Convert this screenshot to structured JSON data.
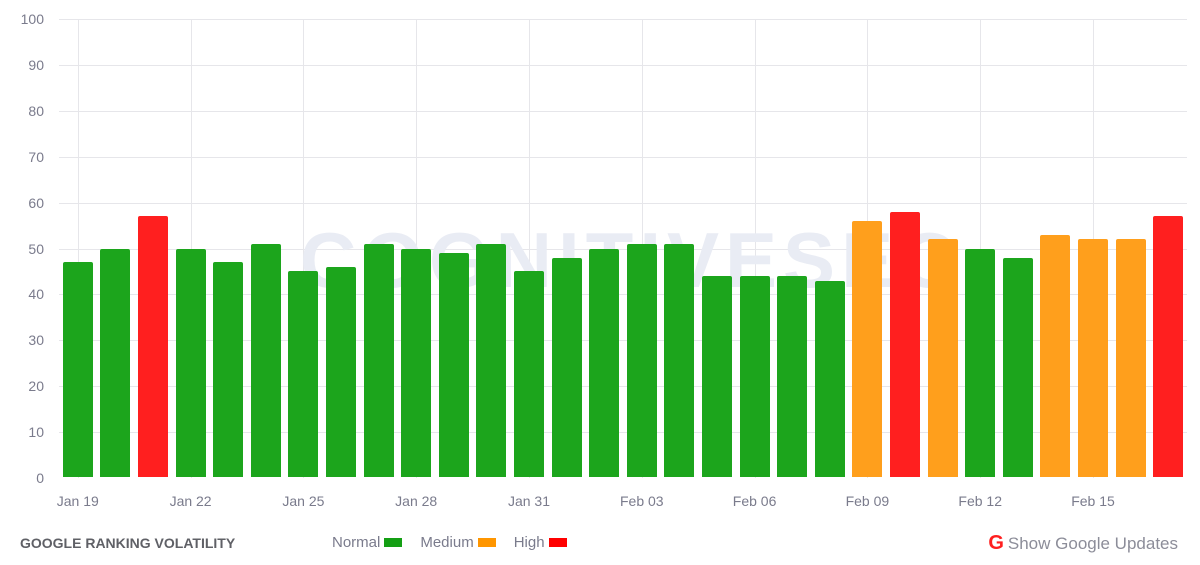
{
  "chart_data": {
    "type": "bar",
    "title": "GOOGLE RANKING VOLATILITY",
    "xlabel": "",
    "ylabel": "",
    "ylim": [
      0,
      100
    ],
    "yticks": [
      0,
      10,
      20,
      30,
      40,
      50,
      60,
      70,
      80,
      90,
      100
    ],
    "grid": true,
    "legend_position": "bottom",
    "categories": [
      "Jan 19",
      "Jan 20",
      "Jan 21",
      "Jan 22",
      "Jan 23",
      "Jan 24",
      "Jan 25",
      "Jan 26",
      "Jan 27",
      "Jan 28",
      "Jan 29",
      "Jan 30",
      "Jan 31",
      "Feb 01",
      "Feb 02",
      "Feb 03",
      "Feb 04",
      "Feb 05",
      "Feb 06",
      "Feb 07",
      "Feb 08",
      "Feb 09",
      "Feb 10",
      "Feb 11",
      "Feb 12",
      "Feb 13",
      "Feb 14",
      "Feb 15",
      "Feb 16",
      "Feb 17"
    ],
    "values": [
      47,
      50,
      57,
      50,
      47,
      51,
      45,
      46,
      51,
      50,
      49,
      51,
      45,
      48,
      50,
      51,
      51,
      44,
      44,
      44,
      43,
      56,
      58,
      52,
      50,
      48,
      53,
      52,
      52,
      57
    ],
    "levels": [
      "normal",
      "normal",
      "high",
      "normal",
      "normal",
      "normal",
      "normal",
      "normal",
      "normal",
      "normal",
      "normal",
      "normal",
      "normal",
      "normal",
      "normal",
      "normal",
      "normal",
      "normal",
      "normal",
      "normal",
      "normal",
      "medium",
      "high",
      "medium",
      "normal",
      "normal",
      "medium",
      "medium",
      "medium",
      "high"
    ],
    "xtick_labels": [
      "Jan 19",
      "Jan 22",
      "Jan 25",
      "Jan 28",
      "Jan 31",
      "Feb 03",
      "Feb 06",
      "Feb 09",
      "Feb 12",
      "Feb 15"
    ],
    "legend": [
      {
        "key": "normal",
        "label": "Normal",
        "color": "#1ca51c"
      },
      {
        "key": "medium",
        "label": "Medium",
        "color": "#ff9f1c"
      },
      {
        "key": "high",
        "label": "High",
        "color": "#ff1f1f"
      }
    ]
  },
  "watermark": "COGNITIVESEO",
  "footer": {
    "title": "GOOGLE RANKING VOLATILITY",
    "legend": {
      "normal": "Normal",
      "medium": "Medium",
      "high": "High"
    },
    "updates_icon": "G",
    "updates_label": "Show Google Updates"
  }
}
